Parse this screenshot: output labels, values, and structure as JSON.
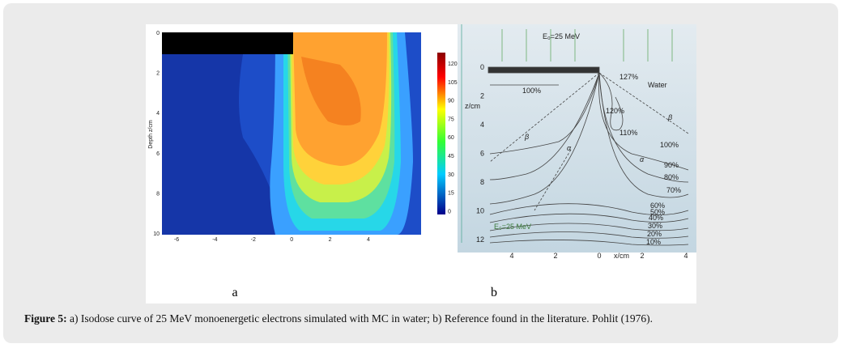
{
  "figure": {
    "panel_a": {
      "label": "a",
      "y_axis_label": "Depth z/cm",
      "x_ticks": [
        "-6",
        "-4",
        "-2",
        "0",
        "2",
        "4"
      ],
      "y_ticks": [
        "0",
        "2",
        "4",
        "6",
        "8",
        "10"
      ],
      "colorbar_ticks": [
        "120",
        "105",
        "90",
        "75",
        "60",
        "45",
        "30",
        "15",
        "0"
      ]
    },
    "panel_b": {
      "label": "b",
      "beam_label": "E₀=25 MeV",
      "medium": "Water",
      "y_axis_label": "z/cm",
      "y_ticks": [
        "0",
        "2",
        "4",
        "6",
        "8",
        "10",
        "12"
      ],
      "x_axis_label": "x/cm",
      "x_ticks": [
        "4",
        "2",
        "0",
        "2",
        "4"
      ],
      "isodose_labels": [
        "127%",
        "100%",
        "120%",
        "110%",
        "100%",
        "90%",
        "80%",
        "70%",
        "60%",
        "50%",
        "40%",
        "30%",
        "20%",
        "10%"
      ],
      "greek_labels": [
        "β",
        "β",
        "α",
        "α"
      ],
      "energy_label": "E₀=25 MeV"
    },
    "caption": {
      "label": "Figure 5:",
      "text": " a) Isodose curve of 25 MeV monoenergetic electrons simulated with MC in water; b) Reference found in the literature. Pohlit (1976)."
    }
  }
}
